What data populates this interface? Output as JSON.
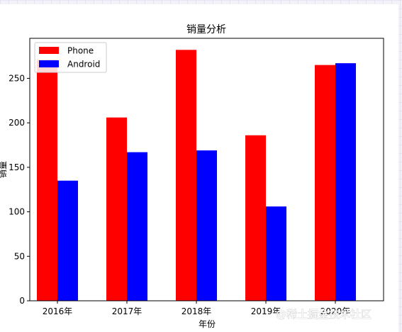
{
  "chart_data": {
    "type": "bar",
    "title": "销量分析",
    "xlabel": "年份",
    "ylabel": "销量",
    "categories": [
      "2016年",
      "2017年",
      "2018年",
      "2019年",
      "2020年"
    ],
    "series": [
      {
        "name": "Phone",
        "color": "#ff0000",
        "values": [
          271,
          206,
          282,
          186,
          265
        ]
      },
      {
        "name": "Android",
        "color": "#0000ff",
        "values": [
          135,
          167,
          169,
          106,
          267
        ]
      }
    ],
    "ylim": [
      0,
      295
    ],
    "yticks": [
      0,
      50,
      100,
      150,
      200,
      250
    ],
    "grid": false,
    "legend_position": "top-left"
  },
  "watermark": "@稀土掘金技术社区"
}
